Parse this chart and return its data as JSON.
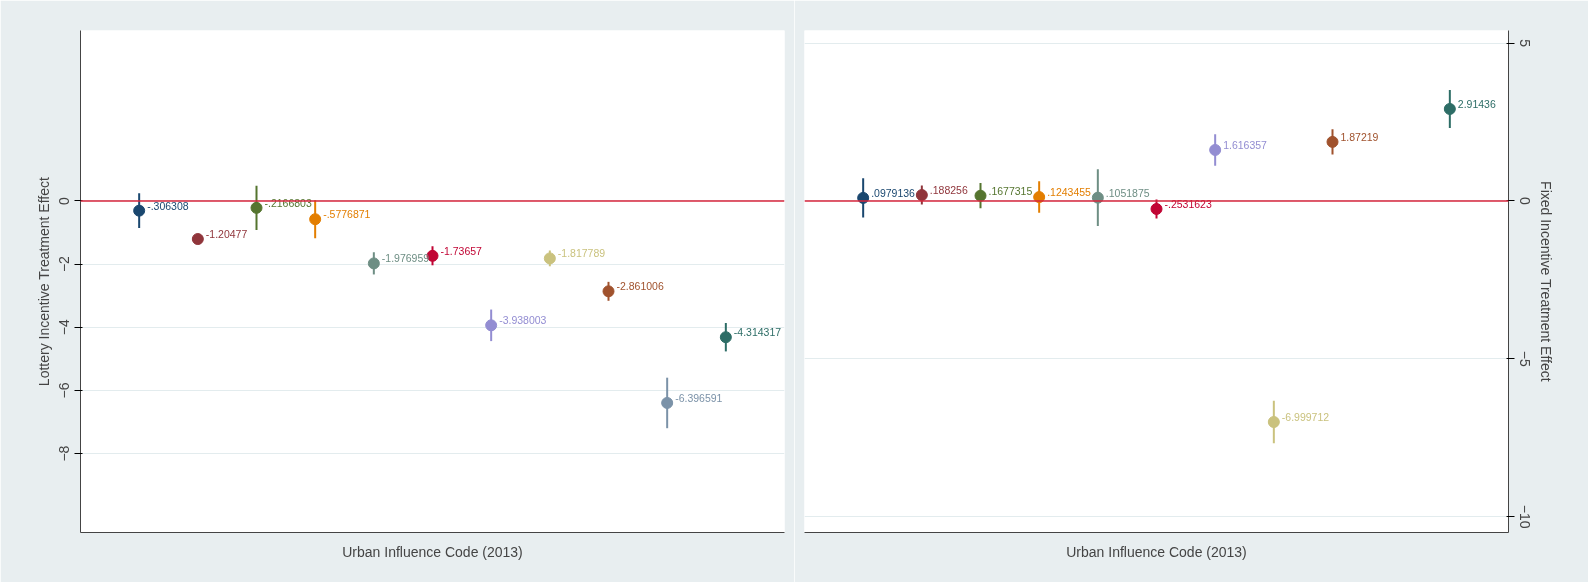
{
  "chart_data": [
    {
      "type": "scatter",
      "xlabel": "Urban Influence Code (2013)",
      "ylabel": "Lottery Incentive Treatment Effect",
      "categories": [
        null,
        null,
        null,
        null,
        null,
        null,
        null,
        null,
        null,
        null,
        null
      ],
      "values": [
        -0.306308,
        -1.20477,
        -0.2166803,
        -0.5776871,
        -1.976959,
        -1.73657,
        -3.938003,
        -1.817789,
        -2.861006,
        -6.396591,
        -4.314317
      ],
      "value_labels": [
        "-.306308",
        "-1.20477",
        "-.2166803",
        "-.5776871",
        "-1.976959",
        "-1.73657",
        "-3.938003",
        "-1.817789",
        "-2.861006",
        "-6.396591",
        "-4.314317"
      ],
      "errors": [
        0.55,
        0.15,
        0.7,
        0.6,
        0.35,
        0.3,
        0.5,
        0.25,
        0.3,
        0.8,
        0.45
      ],
      "colors": [
        "#1a476f",
        "#90353b",
        "#55752f",
        "#e37e00",
        "#6e8e84",
        "#c10534",
        "#938dd2",
        "#cac27e",
        "#a0522d",
        "#7b92a8",
        "#2d6d66"
      ],
      "ylim": [
        -10.5,
        5.4
      ],
      "yticks": [
        0,
        -2,
        -4,
        -6,
        -8
      ],
      "grid": "y",
      "marker": "circle",
      "ref_lines": [
        {
          "axis": "y",
          "value": 0,
          "color": "#d7263d"
        }
      ]
    },
    {
      "type": "scatter",
      "xlabel": "Urban Influence Code (2013)",
      "ylabel": "Fixed Incentive Treatment Effect",
      "categories": [
        null,
        null,
        null,
        null,
        null,
        null,
        null,
        null,
        null,
        null,
        null
      ],
      "values": [
        0.0979136,
        0.188256,
        0.1677315,
        0.1243455,
        0.1051875,
        -0.2531623,
        1.616357,
        -6.999712,
        1.87219,
        null,
        2.91436
      ],
      "value_labels": [
        ".0979136",
        ".188256",
        ".1677315",
        ".1243455",
        ".1051875",
        "-.2531623",
        "1.616357",
        "-6.999712",
        "1.87219",
        null,
        "2.91436"
      ],
      "errors": [
        0.62,
        0.3,
        0.4,
        0.5,
        0.9,
        0.3,
        0.5,
        0.67,
        0.4,
        null,
        0.6
      ],
      "colors": [
        "#1a476f",
        "#90353b",
        "#55752f",
        "#e37e00",
        "#6e8e84",
        "#c10534",
        "#938dd2",
        "#cac27e",
        "#a0522d",
        "#7b92a8",
        "#2d6d66"
      ],
      "ylim": [
        -10.5,
        5.4
      ],
      "yticks": [
        5,
        0,
        -5,
        -10
      ],
      "grid": "y",
      "marker": "circle",
      "ref_lines": [
        {
          "axis": "y",
          "value": 0,
          "color": "#d7263d"
        }
      ]
    }
  ]
}
